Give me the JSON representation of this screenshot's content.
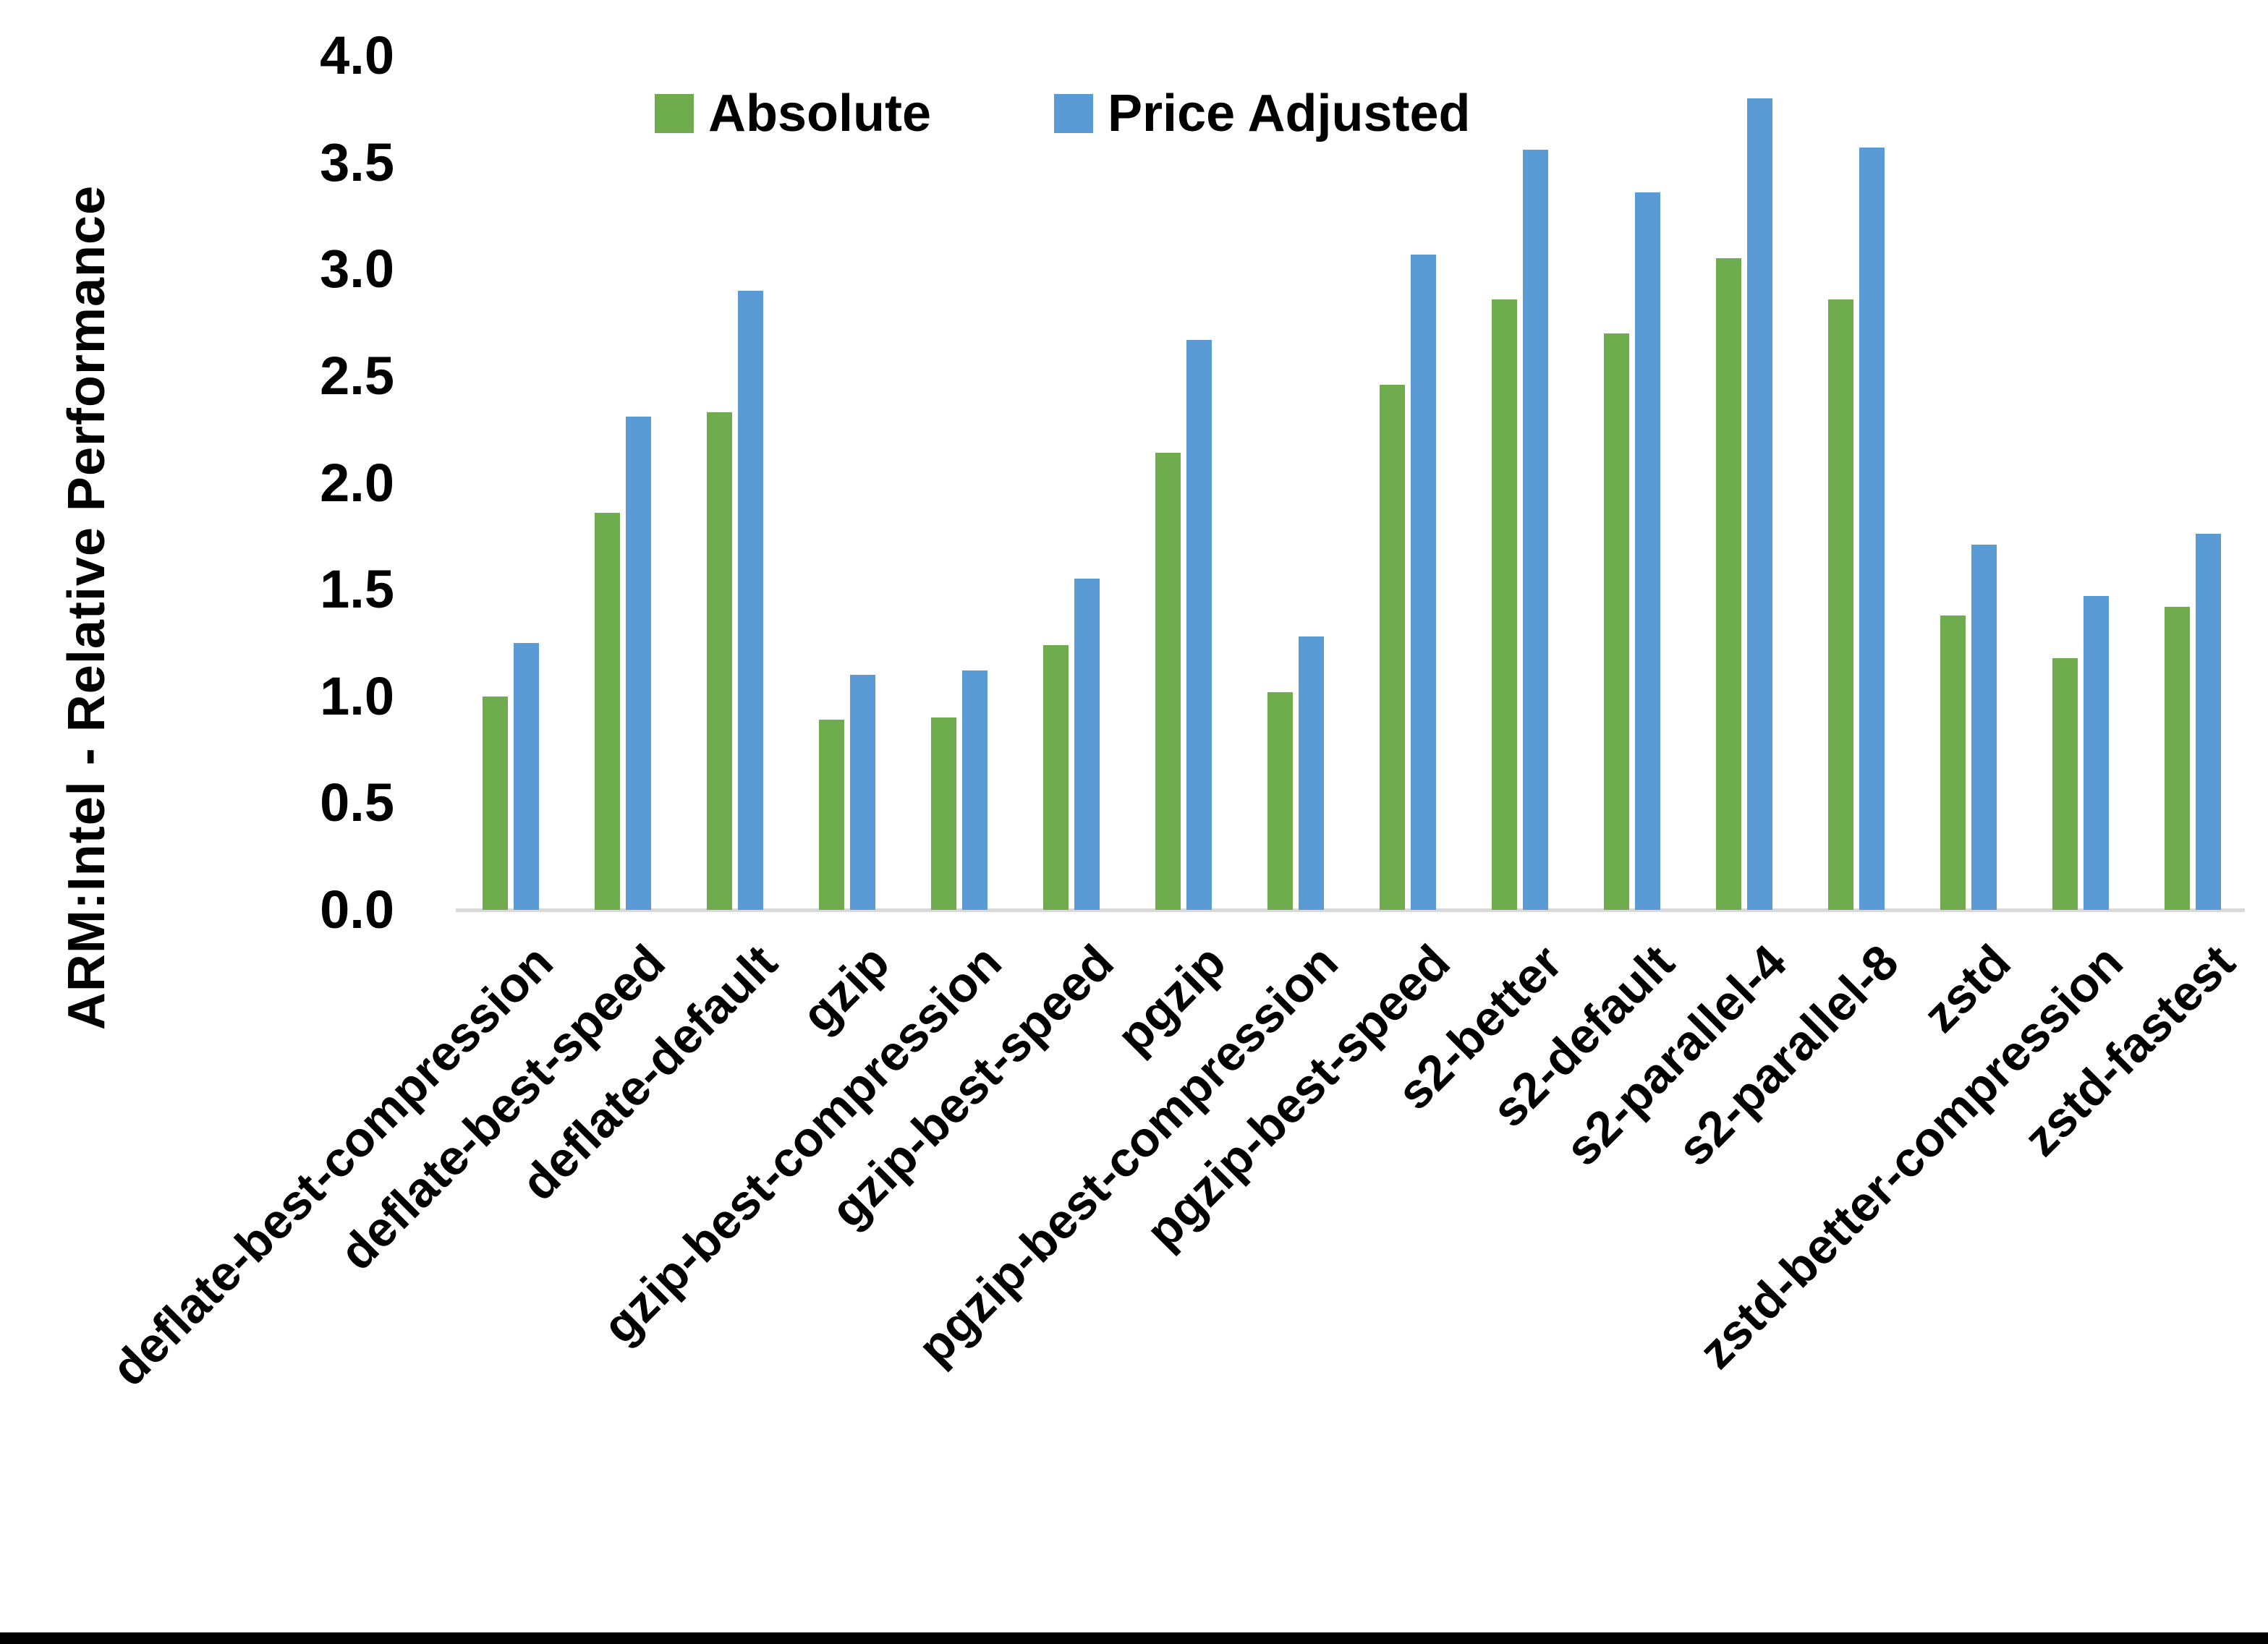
{
  "chart_data": {
    "type": "bar",
    "title": "",
    "ylabel": "ARM:Intel - Relative Performance",
    "xlabel": "",
    "ylim": [
      0.0,
      4.0
    ],
    "ytick_step": 0.5,
    "yticks": [
      "0.0",
      "0.5",
      "1.0",
      "1.5",
      "2.0",
      "2.5",
      "3.0",
      "3.5",
      "4.0"
    ],
    "grid": false,
    "legend_position": "top-center",
    "categories": [
      "deflate-best-compression",
      "deflate-best-speed",
      "deflate-default",
      "gzip",
      "gzip-best-compression",
      "gzip-best-speed",
      "pgzip",
      "pgzip-best-compression",
      "pgzip-best-speed",
      "s2-better",
      "s2-default",
      "s2-parallel-4",
      "s2-parallel-8",
      "zstd",
      "zstd-better-compression",
      "zstd-fastest"
    ],
    "series": [
      {
        "name": "Absolute",
        "color": "#6FAC4D",
        "values": [
          1.0,
          1.86,
          2.33,
          0.89,
          0.9,
          1.24,
          2.14,
          1.02,
          2.46,
          2.86,
          2.7,
          3.05,
          2.86,
          1.38,
          1.18,
          1.42
        ]
      },
      {
        "name": "Price Adjusted",
        "color": "#5B9BD5",
        "values": [
          1.25,
          2.31,
          2.9,
          1.1,
          1.12,
          1.55,
          2.67,
          1.28,
          3.07,
          3.56,
          3.36,
          3.8,
          3.57,
          1.71,
          1.47,
          1.76
        ]
      }
    ]
  },
  "colors": {
    "background": "#FFFFFF",
    "axis_line": "#D9D9D9",
    "text": "#000000",
    "bottom_border": "#000000"
  }
}
